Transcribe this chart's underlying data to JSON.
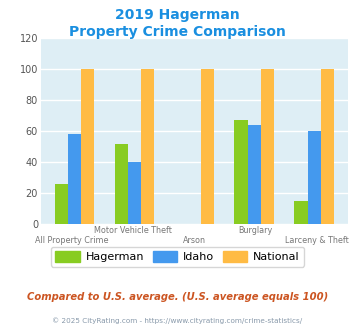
{
  "title_line1": "2019 Hagerman",
  "title_line2": "Property Crime Comparison",
  "title_color": "#1a8fe0",
  "hagerman": [
    26,
    52,
    0,
    67,
    15
  ],
  "idaho": [
    58,
    40,
    0,
    64,
    60
  ],
  "national": [
    100,
    100,
    100,
    100,
    100
  ],
  "hagerman_color": "#88cc22",
  "idaho_color": "#4499ee",
  "national_color": "#ffbb44",
  "plot_bg": "#deeef5",
  "grid_color": "#ffffff",
  "ylim": [
    0,
    120
  ],
  "yticks": [
    0,
    20,
    40,
    60,
    80,
    100,
    120
  ],
  "top_labels": [
    "",
    "Motor Vehicle Theft",
    "",
    "Burglary",
    ""
  ],
  "bot_labels": [
    "All Property Crime",
    "",
    "Arson",
    "",
    "Larceny & Theft"
  ],
  "legend_labels": [
    "Hagerman",
    "Idaho",
    "National"
  ],
  "note": "Compared to U.S. average. (U.S. average equals 100)",
  "note_color": "#cc5522",
  "footer": "© 2025 CityRating.com - https://www.cityrating.com/crime-statistics/",
  "footer_color": "#8899aa",
  "footer_link_color": "#4499ee",
  "bar_width": 0.22
}
